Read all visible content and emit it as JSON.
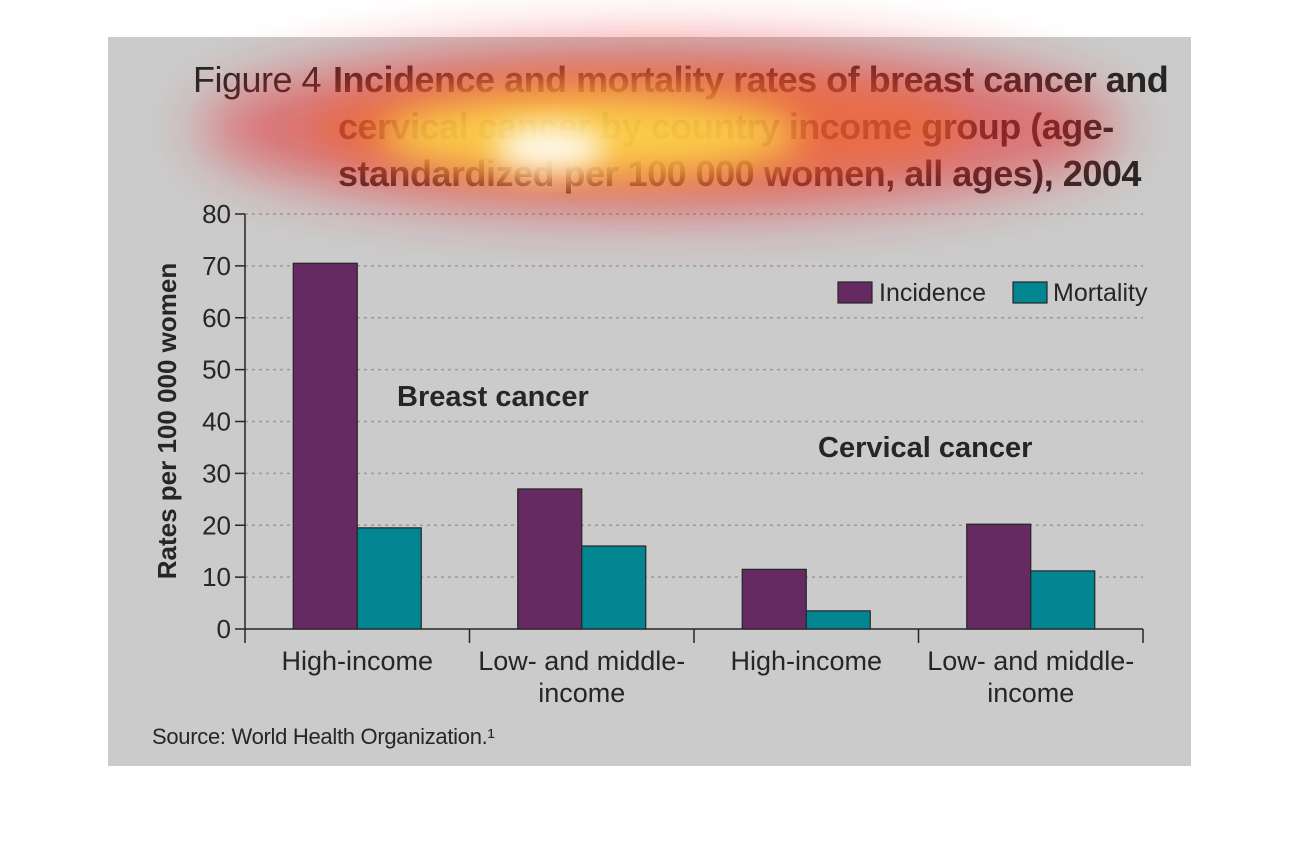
{
  "figure": {
    "label": "Figure 4",
    "title_line1": "Incidence and mortality rates of breast cancer and",
    "title_line2": "cervical cancer by country income group (age-",
    "title_line3": "standardized per 100 000 women, all ages), 2004",
    "source": "Source: World Health Organization.¹"
  },
  "colors": {
    "background": "#cbcbcb",
    "incidence": "#652a62",
    "mortality": "#008591",
    "text": "#262626",
    "gridline": "#9a9a9a"
  },
  "chart_data": {
    "type": "bar",
    "title": "Incidence and mortality rates of breast cancer and cervical cancer by country income group (age-standardized per 100 000 women, all ages), 2004",
    "xlabel": "",
    "ylabel": "Rates per 100 000 women",
    "ylim": [
      0,
      80
    ],
    "yticks": [
      0,
      10,
      20,
      30,
      40,
      50,
      60,
      70,
      80
    ],
    "grid": true,
    "legend_position": "top-right",
    "groups": [
      {
        "label": "Breast cancer",
        "categories": [
          "High-income",
          "Low- and middle-income"
        ]
      },
      {
        "label": "Cervical cancer",
        "categories": [
          "High-income",
          "Low- and middle-income"
        ]
      }
    ],
    "categories": [
      [
        "High-income"
      ],
      [
        "Low- and middle-",
        "income"
      ],
      [
        "High-income"
      ],
      [
        "Low- and middle-",
        "income"
      ]
    ],
    "series": [
      {
        "name": "Incidence",
        "values": [
          70.5,
          27,
          11.5,
          20.2
        ]
      },
      {
        "name": "Mortality",
        "values": [
          19.5,
          16,
          3.5,
          11.2
        ]
      }
    ]
  }
}
